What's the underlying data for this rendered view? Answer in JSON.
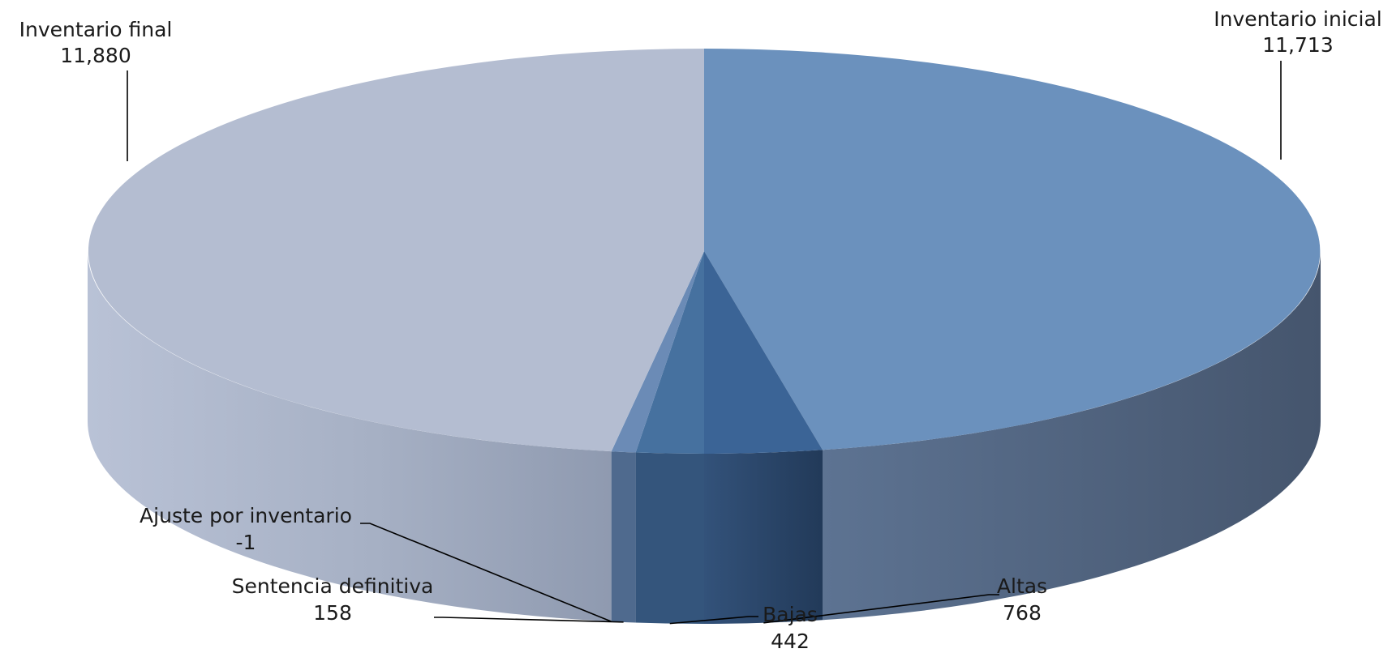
{
  "chart_data": {
    "type": "pie",
    "style": "3d",
    "series": [
      {
        "categories": [
          "Inventario inicial",
          "Altas",
          "Bajas",
          "Sentencia definitiva",
          "Ajuste por inventario",
          "Inventario final"
        ],
        "values": [
          11713,
          768,
          442,
          158,
          -1,
          11880
        ],
        "value_labels": [
          "11,713",
          "768",
          "442",
          "158",
          "-1",
          "11,880"
        ],
        "colors": [
          "#6b91bd",
          "#3b6496",
          "#46719f",
          "#6b8bb6",
          "#8aa0c2",
          "#b4bdd1"
        ],
        "side_colors": [
          "#4f6480",
          "#263e5c",
          "#34557c",
          "#4f6a8e",
          "#5f7293",
          "#c2c8d8"
        ]
      }
    ],
    "legend": "none",
    "data_labels": "outside with leader lines"
  }
}
